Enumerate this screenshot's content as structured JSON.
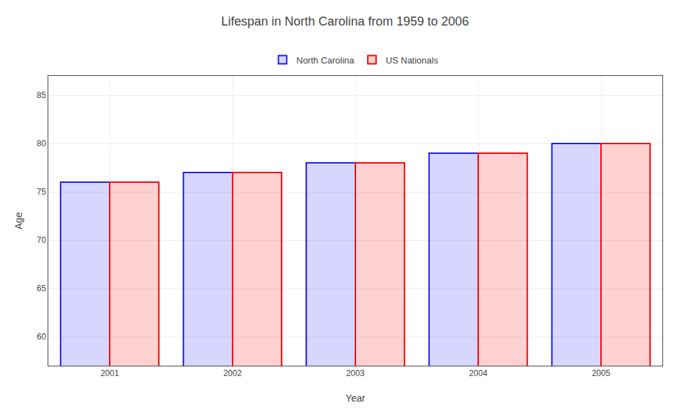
{
  "chart_data": {
    "type": "bar",
    "title": "Lifespan in North Carolina from 1959 to 2006",
    "xlabel": "Year",
    "ylabel": "Age",
    "categories": [
      "2001",
      "2002",
      "2003",
      "2004",
      "2005"
    ],
    "series": [
      {
        "name": "North Carolina",
        "color": "#1a1aff",
        "values": [
          76,
          77,
          78,
          79,
          80
        ]
      },
      {
        "name": "US Nationals",
        "color": "#ff0000",
        "values": [
          76,
          77,
          78,
          79,
          80
        ]
      }
    ],
    "ylim": [
      57,
      87
    ],
    "yticks": [
      60,
      65,
      70,
      75,
      80,
      85
    ],
    "grid": true,
    "legend": "top"
  }
}
